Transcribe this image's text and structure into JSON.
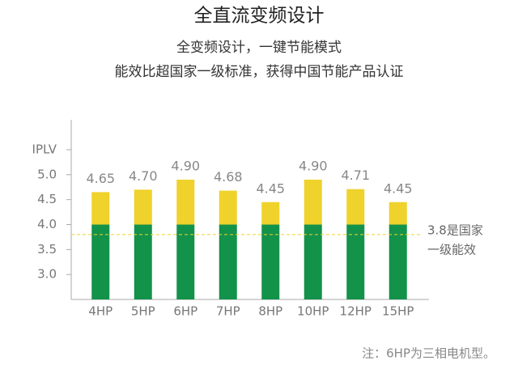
{
  "chart_data": {
    "type": "bar",
    "title": "全直流变频设计",
    "subtitle": [
      "全变频设计，一键节能模式",
      "能效比超国家一级标准，获得中国节能产品认证"
    ],
    "categories": [
      "4HP",
      "5HP",
      "6HP",
      "7HP",
      "8HP",
      "10HP",
      "12HP",
      "15HP"
    ],
    "values": [
      4.65,
      4.7,
      4.9,
      4.68,
      4.45,
      4.9,
      4.71,
      4.45
    ],
    "value_labels": [
      "4.65",
      "4.70",
      "4.90",
      "4.68",
      "4.45",
      "4.90",
      "4.71",
      "4.45"
    ],
    "colors": [
      "#13924a",
      "#efd22b"
    ],
    "color_split": 4,
    "ylim": [
      2.5,
      6.1
    ],
    "yticks": [
      {
        "value": 3,
        "label": "3.0"
      },
      3.5,
      {
        "value": 4,
        "label": "4.0"
      },
      4.5,
      {
        "value": 5,
        "label": "5.0"
      },
      {
        "value": 5.5,
        "label": "IPLV"
      }
    ],
    "reference_line": {
      "value": 3.8,
      "color": "#efd22b",
      "label": [
        "3.8是国家",
        "一级能效"
      ]
    },
    "note": "注：6HP为三相电机型。"
  }
}
